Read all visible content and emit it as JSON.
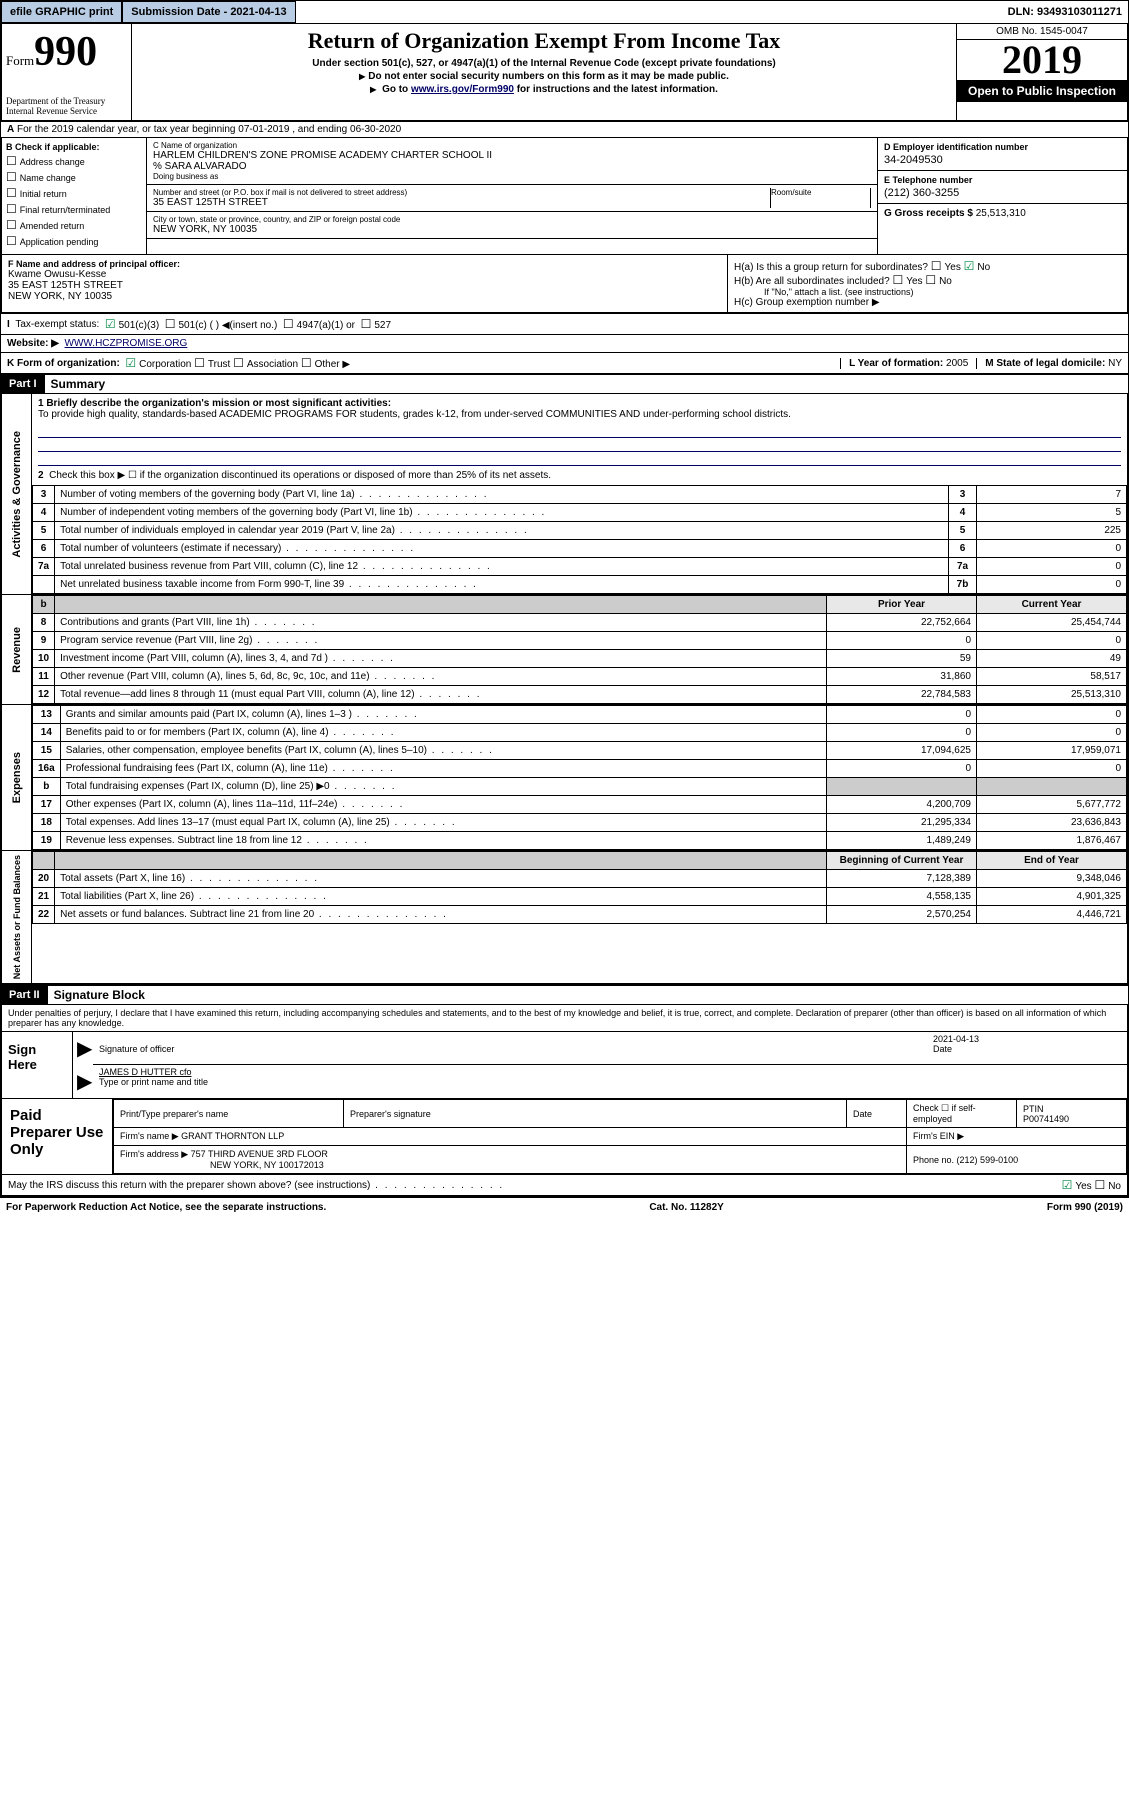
{
  "topbar": {
    "efile": "efile GRAPHIC print",
    "sub_label": "Submission Date - 2021-04-13",
    "dln": "DLN: 93493103011271"
  },
  "header": {
    "form_label": "Form",
    "form_num": "990",
    "dept": "Department of the Treasury\nInternal Revenue Service",
    "title": "Return of Organization Exempt From Income Tax",
    "sub1": "Under section 501(c), 527, or 4947(a)(1) of the Internal Revenue Code (except private foundations)",
    "sub2": "Do not enter social security numbers on this form as it may be made public.",
    "sub3_pre": "Go to ",
    "sub3_link": "www.irs.gov/Form990",
    "sub3_post": " for instructions and the latest information.",
    "omb": "OMB No. 1545-0047",
    "year": "2019",
    "inspect": "Open to Public Inspection"
  },
  "sectionA": {
    "text": "For the 2019 calendar year, or tax year beginning 07-01-2019   , and ending 06-30-2020"
  },
  "checkB": {
    "label": "B Check if applicable:",
    "items": [
      "Address change",
      "Name change",
      "Initial return",
      "Final return/terminated",
      "Amended return",
      "Application pending"
    ]
  },
  "orgC": {
    "name_lbl": "C Name of organization",
    "name": "HARLEM CHILDREN'S ZONE PROMISE ACADEMY CHARTER SCHOOL II",
    "care": "% SARA ALVARADO",
    "dba_lbl": "Doing business as",
    "addr_lbl": "Number and street (or P.O. box if mail is not delivered to street address)",
    "addr": "35 EAST 125TH STREET",
    "room_lbl": "Room/suite",
    "city_lbl": "City or town, state or province, country, and ZIP or foreign postal code",
    "city": "NEW YORK, NY  10035"
  },
  "right": {
    "ein_lbl": "D Employer identification number",
    "ein": "34-2049530",
    "tel_lbl": "E Telephone number",
    "tel": "(212) 360-3255",
    "gross_lbl": "G Gross receipts $ ",
    "gross": "25,513,310"
  },
  "sectionF": {
    "lbl": "F  Name and address of principal officer:",
    "name": "Kwame Owusu-Kesse",
    "addr1": "35 EAST 125TH STREET",
    "addr2": "NEW YORK, NY  10035"
  },
  "sectionH": {
    "ha": "H(a)  Is this a group return for subordinates?",
    "hb": "H(b)  Are all subordinates included?",
    "hb_note": "If \"No,\" attach a list. (see instructions)",
    "hc": "H(c)  Group exemption number ▶"
  },
  "taxI": {
    "lbl": "Tax-exempt status:",
    "opts": [
      "501(c)(3)",
      "501(c) (  ) ◀(insert no.)",
      "4947(a)(1) or",
      "527"
    ]
  },
  "sectionJ": {
    "lbl": "Website: ▶",
    "val": "WWW.HCZPROMISE.ORG"
  },
  "sectionK": {
    "lbl": "K Form of organization:",
    "opts": [
      "Corporation",
      "Trust",
      "Association",
      "Other ▶"
    ]
  },
  "sectionL": {
    "lbl": "L Year of formation: ",
    "val": "2005"
  },
  "sectionM": {
    "lbl": "M State of legal domicile: ",
    "val": "NY"
  },
  "part1": {
    "hdr": "Part I",
    "title": "Summary",
    "q1_lbl": "1  Briefly describe the organization's mission or most significant activities:",
    "q1_text": "To provide high quality, standards-based ACADEMIC PROGRAMS FOR students, grades k-12, from under-served COMMUNITIES AND under-performing school districts.",
    "q2": "Check this box ▶ ☐  if the organization discontinued its operations or disposed of more than 25% of its net assets.",
    "sides": {
      "act": "Activities & Governance",
      "rev": "Revenue",
      "exp": "Expenses",
      "net": "Net Assets or Fund Balances"
    },
    "rows_gov": [
      {
        "n": "3",
        "d": "Number of voting members of the governing body (Part VI, line 1a)",
        "box": "3",
        "v": "7"
      },
      {
        "n": "4",
        "d": "Number of independent voting members of the governing body (Part VI, line 1b)",
        "box": "4",
        "v": "5"
      },
      {
        "n": "5",
        "d": "Total number of individuals employed in calendar year 2019 (Part V, line 2a)",
        "box": "5",
        "v": "225"
      },
      {
        "n": "6",
        "d": "Total number of volunteers (estimate if necessary)",
        "box": "6",
        "v": "0"
      },
      {
        "n": "7a",
        "d": "Total unrelated business revenue from Part VIII, column (C), line 12",
        "box": "7a",
        "v": "0"
      },
      {
        "n": "",
        "d": "Net unrelated business taxable income from Form 990-T, line 39",
        "box": "7b",
        "v": "0"
      }
    ],
    "col_hdrs": {
      "prior": "Prior Year",
      "curr": "Current Year"
    },
    "rows_rev": [
      {
        "n": "8",
        "d": "Contributions and grants (Part VIII, line 1h)",
        "p": "22,752,664",
        "c": "25,454,744"
      },
      {
        "n": "9",
        "d": "Program service revenue (Part VIII, line 2g)",
        "p": "0",
        "c": "0"
      },
      {
        "n": "10",
        "d": "Investment income (Part VIII, column (A), lines 3, 4, and 7d )",
        "p": "59",
        "c": "49"
      },
      {
        "n": "11",
        "d": "Other revenue (Part VIII, column (A), lines 5, 6d, 8c, 9c, 10c, and 11e)",
        "p": "31,860",
        "c": "58,517"
      },
      {
        "n": "12",
        "d": "Total revenue—add lines 8 through 11 (must equal Part VIII, column (A), line 12)",
        "p": "22,784,583",
        "c": "25,513,310"
      }
    ],
    "rows_exp": [
      {
        "n": "13",
        "d": "Grants and similar amounts paid (Part IX, column (A), lines 1–3 )",
        "p": "0",
        "c": "0"
      },
      {
        "n": "14",
        "d": "Benefits paid to or for members (Part IX, column (A), line 4)",
        "p": "0",
        "c": "0"
      },
      {
        "n": "15",
        "d": "Salaries, other compensation, employee benefits (Part IX, column (A), lines 5–10)",
        "p": "17,094,625",
        "c": "17,959,071"
      },
      {
        "n": "16a",
        "d": "Professional fundraising fees (Part IX, column (A), line 11e)",
        "p": "0",
        "c": "0"
      },
      {
        "n": "b",
        "d": "Total fundraising expenses (Part IX, column (D), line 25) ▶0",
        "p": "",
        "c": "",
        "shade": true
      },
      {
        "n": "17",
        "d": "Other expenses (Part IX, column (A), lines 11a–11d, 11f–24e)",
        "p": "4,200,709",
        "c": "5,677,772"
      },
      {
        "n": "18",
        "d": "Total expenses. Add lines 13–17 (must equal Part IX, column (A), line 25)",
        "p": "21,295,334",
        "c": "23,636,843"
      },
      {
        "n": "19",
        "d": "Revenue less expenses. Subtract line 18 from line 12",
        "p": "1,489,249",
        "c": "1,876,467"
      }
    ],
    "net_hdrs": {
      "b": "Beginning of Current Year",
      "e": "End of Year"
    },
    "rows_net": [
      {
        "n": "20",
        "d": "Total assets (Part X, line 16)",
        "p": "7,128,389",
        "c": "9,348,046"
      },
      {
        "n": "21",
        "d": "Total liabilities (Part X, line 26)",
        "p": "4,558,135",
        "c": "4,901,325"
      },
      {
        "n": "22",
        "d": "Net assets or fund balances. Subtract line 21 from line 20",
        "p": "2,570,254",
        "c": "4,446,721"
      }
    ]
  },
  "part2": {
    "hdr": "Part II",
    "title": "Signature Block",
    "decl": "Under penalties of perjury, I declare that I have examined this return, including accompanying schedules and statements, and to the best of my knowledge and belief, it is true, correct, and complete. Declaration of preparer (other than officer) is based on all information of which preparer has any knowledge.",
    "sign_here": "Sign Here",
    "sig_off": "Signature of officer",
    "sig_date": "Date",
    "sig_date_val": "2021-04-13",
    "officer": "JAMES D HUTTER  cfo",
    "officer_lbl": "Type or print name and title",
    "paid": "Paid Preparer Use Only",
    "prep_name_lbl": "Print/Type preparer's name",
    "prep_sig_lbl": "Preparer's signature",
    "prep_date_lbl": "Date",
    "prep_chk": "Check ☐ if self-employed",
    "ptin_lbl": "PTIN",
    "ptin": "P00741490",
    "firm_name_lbl": "Firm's name      ▶",
    "firm_name": "GRANT THORNTON LLP",
    "firm_ein_lbl": "Firm's EIN ▶",
    "firm_addr_lbl": "Firm's address ▶",
    "firm_addr1": "757 THIRD AVENUE 3RD FLOOR",
    "firm_addr2": "NEW YORK, NY  100172013",
    "firm_phone_lbl": "Phone no. ",
    "firm_phone": "(212) 599-0100",
    "discuss": "May the IRS discuss this return with the preparer shown above? (see instructions)"
  },
  "footer": {
    "left": "For Paperwork Reduction Act Notice, see the separate instructions.",
    "mid": "Cat. No. 11282Y",
    "right": "Form 990 (2019)"
  }
}
